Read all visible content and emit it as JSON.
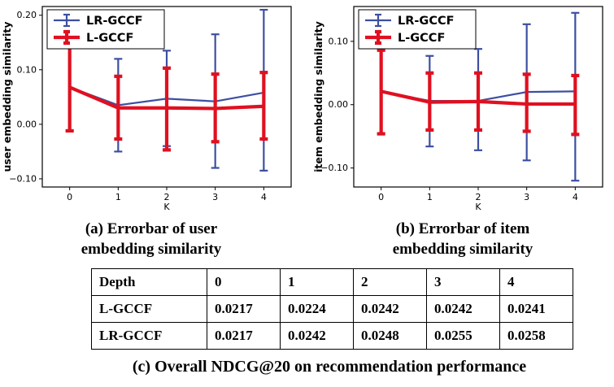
{
  "captions": {
    "a1": "(a) Errorbar of user",
    "a2": "embedding similarity",
    "b1": "(b) Errorbar of item",
    "b2": "embedding similarity",
    "c": "(c) Overall NDCG@20 on recommendation performance"
  },
  "colors": {
    "lr_gccf_blue": "#3d4fa1",
    "l_gccf_red": "#e01020"
  },
  "chart_data": [
    {
      "type": "line",
      "variant": "errorbar",
      "title": "",
      "xlabel": "K",
      "ylabel": "user embedding similarity",
      "x": [
        0,
        1,
        2,
        3,
        4
      ],
      "xticks": [
        "0",
        "1",
        "2",
        "3",
        "4"
      ],
      "yticks": [
        -0.1,
        0.0,
        0.1,
        0.2
      ],
      "ylim": [
        -0.115,
        0.216
      ],
      "grid": false,
      "legend_position": "upper-left",
      "series": [
        {
          "name": "LR-GCCF",
          "color": "#3d4fa1",
          "linewidth": 2.2,
          "y": [
            0.068,
            0.035,
            0.047,
            0.042,
            0.058
          ],
          "bar_low": [
            -0.012,
            -0.05,
            -0.04,
            -0.08,
            -0.085
          ],
          "bar_high": [
            0.2,
            0.12,
            0.135,
            0.165,
            0.21
          ]
        },
        {
          "name": "L-GCCF",
          "color": "#e01020",
          "linewidth": 4.2,
          "y": [
            0.068,
            0.03,
            0.03,
            0.029,
            0.033
          ],
          "bar_low": [
            -0.012,
            -0.027,
            -0.047,
            -0.032,
            -0.027
          ],
          "bar_high": [
            0.2,
            0.088,
            0.103,
            0.092,
            0.095
          ]
        }
      ]
    },
    {
      "type": "line",
      "variant": "errorbar",
      "title": "",
      "xlabel": "K",
      "ylabel": "item embedding similarity",
      "x": [
        0,
        1,
        2,
        3,
        4
      ],
      "xticks": [
        "0",
        "1",
        "2",
        "3",
        "4"
      ],
      "yticks": [
        -0.1,
        0.0,
        0.1
      ],
      "ylim": [
        -0.13,
        0.155
      ],
      "grid": false,
      "legend_position": "upper-left",
      "series": [
        {
          "name": "LR-GCCF",
          "color": "#3d4fa1",
          "linewidth": 2.2,
          "y": [
            0.021,
            0.006,
            0.006,
            0.02,
            0.021
          ],
          "bar_low": [
            -0.046,
            -0.066,
            -0.072,
            -0.088,
            -0.12
          ],
          "bar_high": [
            0.086,
            0.077,
            0.088,
            0.127,
            0.145
          ]
        },
        {
          "name": "L-GCCF",
          "color": "#e01020",
          "linewidth": 4.2,
          "y": [
            0.021,
            0.004,
            0.005,
            0.001,
            0.001
          ],
          "bar_low": [
            -0.046,
            -0.04,
            -0.04,
            -0.042,
            -0.047
          ],
          "bar_high": [
            0.086,
            0.05,
            0.05,
            0.048,
            0.046
          ]
        }
      ]
    },
    {
      "type": "table",
      "title": "(c) Overall NDCG@20 on recommendation performance",
      "headers": [
        "Depth",
        "0",
        "1",
        "2",
        "3",
        "4"
      ],
      "rows": [
        [
          "L-GCCF",
          "0.0217",
          "0.0224",
          "0.0242",
          "0.0242",
          "0.0241"
        ],
        [
          "LR-GCCF",
          "0.0217",
          "0.0242",
          "0.0248",
          "0.0255",
          "0.0258"
        ]
      ]
    }
  ]
}
